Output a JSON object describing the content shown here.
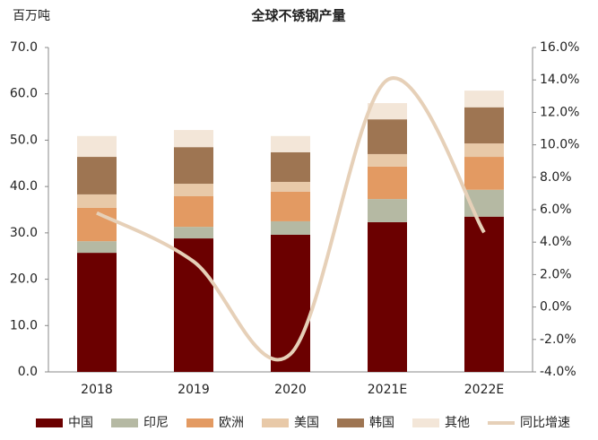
{
  "chart_data": {
    "type": "bar",
    "stacked": true,
    "title": "全球不锈钢产量",
    "y_label": "百万吨",
    "categories": [
      "2018",
      "2019",
      "2020",
      "2021E",
      "2022E"
    ],
    "series": [
      {
        "name": "中国",
        "color": "#6b0000",
        "values": [
          25.7,
          28.8,
          29.6,
          32.3,
          33.5
        ]
      },
      {
        "name": "印尼",
        "color": "#b5b9a3",
        "values": [
          2.5,
          2.5,
          2.9,
          5.0,
          5.8
        ]
      },
      {
        "name": "欧洲",
        "color": "#e39a62",
        "values": [
          7.2,
          6.6,
          6.4,
          7.0,
          7.1
        ]
      },
      {
        "name": "美国",
        "color": "#e8c9a8",
        "values": [
          2.9,
          2.7,
          2.1,
          2.7,
          2.9
        ]
      },
      {
        "name": "韩国",
        "color": "#9e7552",
        "values": [
          8.1,
          7.9,
          6.4,
          7.5,
          7.8
        ]
      },
      {
        "name": "其他",
        "color": "#f3e6d8",
        "values": [
          4.5,
          3.7,
          3.5,
          3.5,
          3.6
        ]
      },
      {
        "name": "同比增速",
        "color": "#e6d0b8",
        "type": "line",
        "axis": "y2",
        "values": [
          5.8,
          2.8,
          -2.9,
          14.0,
          4.6
        ]
      }
    ],
    "ylim": [
      0,
      70
    ],
    "yticks": [
      {
        "value": 0,
        "label": "0.0"
      },
      {
        "value": 10,
        "label": "10.0"
      },
      {
        "value": 20,
        "label": "20.0"
      },
      {
        "value": 30,
        "label": "30.0"
      },
      {
        "value": 40,
        "label": "40.0"
      },
      {
        "value": 50,
        "label": "50.0"
      },
      {
        "value": 60,
        "label": "60.0"
      },
      {
        "value": 70,
        "label": "70.0"
      }
    ],
    "y2lim": [
      -4,
      16
    ],
    "y2ticks": [
      {
        "value": -4,
        "label": "-4.0%"
      },
      {
        "value": -2,
        "label": "-2.0%"
      },
      {
        "value": 0,
        "label": "0.0%"
      },
      {
        "value": 2,
        "label": "2.0%"
      },
      {
        "value": 4,
        "label": "4.0%"
      },
      {
        "value": 6,
        "label": "6.0%"
      },
      {
        "value": 8,
        "label": "8.0%"
      },
      {
        "value": 10,
        "label": "10.0%"
      },
      {
        "value": 12,
        "label": "12.0%"
      },
      {
        "value": 14,
        "label": "14.0%"
      },
      {
        "value": 16,
        "label": "16.0%"
      }
    ],
    "legend": "bottom"
  }
}
